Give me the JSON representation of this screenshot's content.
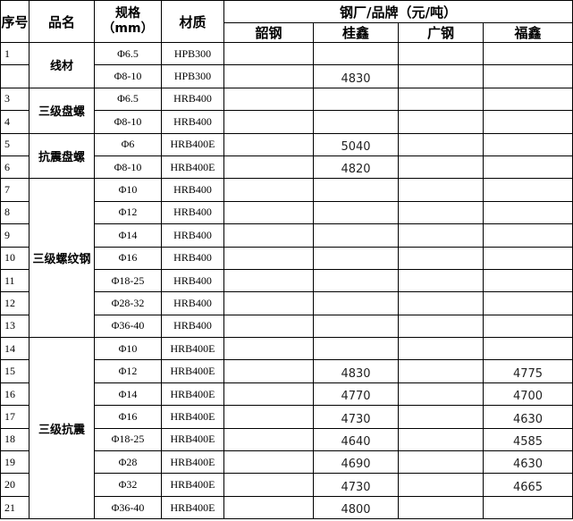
{
  "header": {
    "seq": "序号",
    "name": "品名",
    "spec": "规格",
    "spec_unit": "（mm）",
    "material": "材质",
    "mills_title": "钢厂/品牌（元/吨）",
    "mills": [
      "韶钢",
      "桂鑫",
      "广钢",
      "福鑫"
    ]
  },
  "groups": [
    {
      "name": "线材",
      "rows": [
        {
          "seq": "1",
          "spec": "Φ6.5",
          "material": "HPB300",
          "prices": [
            "",
            "",
            "",
            ""
          ]
        },
        {
          "seq": "",
          "spec": "Φ8-10",
          "material": "HPB300",
          "prices": [
            "",
            "4830",
            "",
            ""
          ]
        }
      ]
    },
    {
      "name": "三级盘螺",
      "rows": [
        {
          "seq": "3",
          "spec": "Φ6.5",
          "material": "HRB400",
          "prices": [
            "",
            "",
            "",
            ""
          ]
        },
        {
          "seq": "4",
          "spec": "Φ8-10",
          "material": "HRB400",
          "prices": [
            "",
            "",
            "",
            ""
          ]
        }
      ]
    },
    {
      "name": "抗震盘螺",
      "rows": [
        {
          "seq": "5",
          "spec": "Φ6",
          "material": "HRB400E",
          "prices": [
            "",
            "5040",
            "",
            ""
          ]
        },
        {
          "seq": "6",
          "spec": "Φ8-10",
          "material": "HRB400E",
          "prices": [
            "",
            "4820",
            "",
            ""
          ]
        }
      ]
    },
    {
      "name": "三级螺纹钢",
      "rows": [
        {
          "seq": "7",
          "spec": "Φ10",
          "material": "HRB400",
          "prices": [
            "",
            "",
            "",
            ""
          ]
        },
        {
          "seq": "8",
          "spec": "Φ12",
          "material": "HRB400",
          "prices": [
            "",
            "",
            "",
            ""
          ]
        },
        {
          "seq": "9",
          "spec": "Φ14",
          "material": "HRB400",
          "prices": [
            "",
            "",
            "",
            ""
          ]
        },
        {
          "seq": "10",
          "spec": "Φ16",
          "material": "HRB400",
          "prices": [
            "",
            "",
            "",
            ""
          ]
        },
        {
          "seq": "11",
          "spec": "Φ18-25",
          "material": "HRB400",
          "prices": [
            "",
            "",
            "",
            ""
          ]
        },
        {
          "seq": "12",
          "spec": "Φ28-32",
          "material": "HRB400",
          "prices": [
            "",
            "",
            "",
            ""
          ]
        },
        {
          "seq": "13",
          "spec": "Φ36-40",
          "material": "HRB400",
          "prices": [
            "",
            "",
            "",
            ""
          ]
        }
      ]
    },
    {
      "name": "三级抗震",
      "rows": [
        {
          "seq": "14",
          "spec": "Φ10",
          "material": "HRB400E",
          "prices": [
            "",
            "",
            "",
            ""
          ]
        },
        {
          "seq": "15",
          "spec": "Φ12",
          "material": "HRB400E",
          "prices": [
            "",
            "4830",
            "",
            "4775"
          ]
        },
        {
          "seq": "16",
          "spec": "Φ14",
          "material": "HRB400E",
          "prices": [
            "",
            "4770",
            "",
            "4700"
          ]
        },
        {
          "seq": "17",
          "spec": "Φ16",
          "material": "HRB400E",
          "prices": [
            "",
            "4730",
            "",
            "4630"
          ]
        },
        {
          "seq": "18",
          "spec": "Φ18-25",
          "material": "HRB400E",
          "prices": [
            "",
            "4640",
            "",
            "4585"
          ]
        },
        {
          "seq": "19",
          "spec": "Φ28",
          "material": "HRB400E",
          "prices": [
            "",
            "4690",
            "",
            "4630"
          ]
        },
        {
          "seq": "20",
          "spec": "Φ32",
          "material": "HRB400E",
          "prices": [
            "",
            "4730",
            "",
            "4665"
          ]
        },
        {
          "seq": "21",
          "spec": "Φ36-40",
          "material": "HRB400E",
          "prices": [
            "",
            "4800",
            "",
            ""
          ]
        }
      ]
    }
  ]
}
